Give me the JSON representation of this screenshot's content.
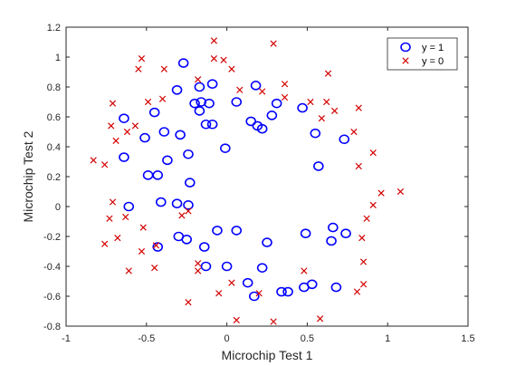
{
  "chart_data": {
    "type": "scatter",
    "xlabel": "Microchip Test 1",
    "ylabel": "Microchip Test 2",
    "xlim": [
      -1,
      1.5
    ],
    "ylim": [
      -0.8,
      1.2
    ],
    "xticks": [
      -1,
      -0.5,
      0,
      0.5,
      1,
      1.5
    ],
    "xtick_labels": [
      "-1",
      "-0.5",
      "0",
      "0.5",
      "1",
      "1.5"
    ],
    "yticks": [
      -0.8,
      -0.6,
      -0.4,
      -0.2,
      0,
      0.2,
      0.4,
      0.6,
      0.8,
      1,
      1.2
    ],
    "ytick_labels": [
      "-0.8",
      "-0.6",
      "-0.4",
      "-0.2",
      "0",
      "0.2",
      "0.4",
      "0.6",
      "0.8",
      "1",
      "1.2"
    ],
    "grid": false,
    "legend_position": "top-right",
    "series": [
      {
        "name": "y = 1",
        "marker": "circle",
        "color": "#0000ff",
        "points": [
          [
            -0.27,
            0.96
          ],
          [
            -0.09,
            0.82
          ],
          [
            -0.17,
            0.8
          ],
          [
            -0.31,
            0.78
          ],
          [
            0.18,
            0.81
          ],
          [
            -0.2,
            0.69
          ],
          [
            -0.16,
            0.7
          ],
          [
            -0.11,
            0.69
          ],
          [
            0.06,
            0.7
          ],
          [
            0.31,
            0.69
          ],
          [
            0.47,
            0.66
          ],
          [
            -0.45,
            0.63
          ],
          [
            -0.64,
            0.59
          ],
          [
            -0.17,
            0.64
          ],
          [
            0.28,
            0.61
          ],
          [
            0.15,
            0.57
          ],
          [
            0.19,
            0.54
          ],
          [
            0.22,
            0.52
          ],
          [
            -0.13,
            0.55
          ],
          [
            -0.09,
            0.55
          ],
          [
            -0.39,
            0.5
          ],
          [
            -0.29,
            0.48
          ],
          [
            -0.51,
            0.46
          ],
          [
            0.55,
            0.49
          ],
          [
            0.73,
            0.45
          ],
          [
            -0.01,
            0.39
          ],
          [
            -0.24,
            0.35
          ],
          [
            -0.64,
            0.33
          ],
          [
            -0.37,
            0.31
          ],
          [
            0.57,
            0.27
          ],
          [
            -0.49,
            0.21
          ],
          [
            -0.43,
            0.21
          ],
          [
            -0.23,
            0.16
          ],
          [
            -0.41,
            0.03
          ],
          [
            -0.31,
            0.02
          ],
          [
            -0.24,
            0.01
          ],
          [
            -0.61,
            0.0
          ],
          [
            0.66,
            -0.14
          ],
          [
            -0.06,
            -0.16
          ],
          [
            0.06,
            -0.16
          ],
          [
            0.49,
            -0.18
          ],
          [
            0.74,
            -0.18
          ],
          [
            -0.3,
            -0.2
          ],
          [
            -0.25,
            -0.22
          ],
          [
            0.25,
            -0.24
          ],
          [
            0.65,
            -0.23
          ],
          [
            -0.14,
            -0.27
          ],
          [
            -0.43,
            -0.27
          ],
          [
            -0.13,
            -0.4
          ],
          [
            0.0,
            -0.4
          ],
          [
            0.22,
            -0.41
          ],
          [
            0.13,
            -0.51
          ],
          [
            0.34,
            -0.57
          ],
          [
            0.53,
            -0.52
          ],
          [
            0.68,
            -0.54
          ],
          [
            0.48,
            -0.54
          ],
          [
            0.38,
            -0.57
          ],
          [
            0.17,
            -0.6
          ]
        ]
      },
      {
        "name": "y = 0",
        "marker": "x",
        "color": "#d40000",
        "points": [
          [
            -0.08,
            1.11
          ],
          [
            0.29,
            1.09
          ],
          [
            -0.53,
            0.99
          ],
          [
            -0.08,
            0.99
          ],
          [
            -0.02,
            0.98
          ],
          [
            -0.55,
            0.92
          ],
          [
            -0.39,
            0.92
          ],
          [
            0.03,
            0.92
          ],
          [
            0.63,
            0.89
          ],
          [
            -0.18,
            0.85
          ],
          [
            0.36,
            0.82
          ],
          [
            -0.4,
            0.72
          ],
          [
            0.22,
            0.77
          ],
          [
            0.08,
            0.78
          ],
          [
            0.36,
            0.73
          ],
          [
            0.52,
            0.7
          ],
          [
            0.62,
            0.7
          ],
          [
            -0.49,
            0.7
          ],
          [
            -0.71,
            0.69
          ],
          [
            0.82,
            0.66
          ],
          [
            0.67,
            0.64
          ],
          [
            0.59,
            0.59
          ],
          [
            -0.72,
            0.54
          ],
          [
            -0.57,
            0.54
          ],
          [
            0.79,
            0.5
          ],
          [
            -0.62,
            0.5
          ],
          [
            -0.69,
            0.44
          ],
          [
            0.91,
            0.36
          ],
          [
            -0.83,
            0.31
          ],
          [
            -0.76,
            0.28
          ],
          [
            0.82,
            0.27
          ],
          [
            1.08,
            0.1
          ],
          [
            0.96,
            0.09
          ],
          [
            0.91,
            0.01
          ],
          [
            -0.71,
            0.03
          ],
          [
            -0.63,
            -0.07
          ],
          [
            -0.24,
            -0.03
          ],
          [
            -0.28,
            -0.06
          ],
          [
            -0.73,
            -0.08
          ],
          [
            0.87,
            -0.08
          ],
          [
            -0.52,
            -0.14
          ],
          [
            0.84,
            -0.21
          ],
          [
            -0.68,
            -0.21
          ],
          [
            -0.44,
            -0.26
          ],
          [
            -0.53,
            -0.3
          ],
          [
            -0.76,
            -0.25
          ],
          [
            -0.18,
            -0.38
          ],
          [
            -0.18,
            -0.43
          ],
          [
            0.85,
            -0.37
          ],
          [
            -0.61,
            -0.43
          ],
          [
            -0.45,
            -0.41
          ],
          [
            0.48,
            -0.43
          ],
          [
            0.03,
            -0.51
          ],
          [
            -0.05,
            -0.58
          ],
          [
            0.2,
            -0.58
          ],
          [
            0.85,
            -0.52
          ],
          [
            0.81,
            -0.57
          ],
          [
            -0.24,
            -0.64
          ],
          [
            0.58,
            -0.75
          ],
          [
            0.06,
            -0.76
          ],
          [
            0.29,
            -0.77
          ]
        ]
      }
    ]
  }
}
